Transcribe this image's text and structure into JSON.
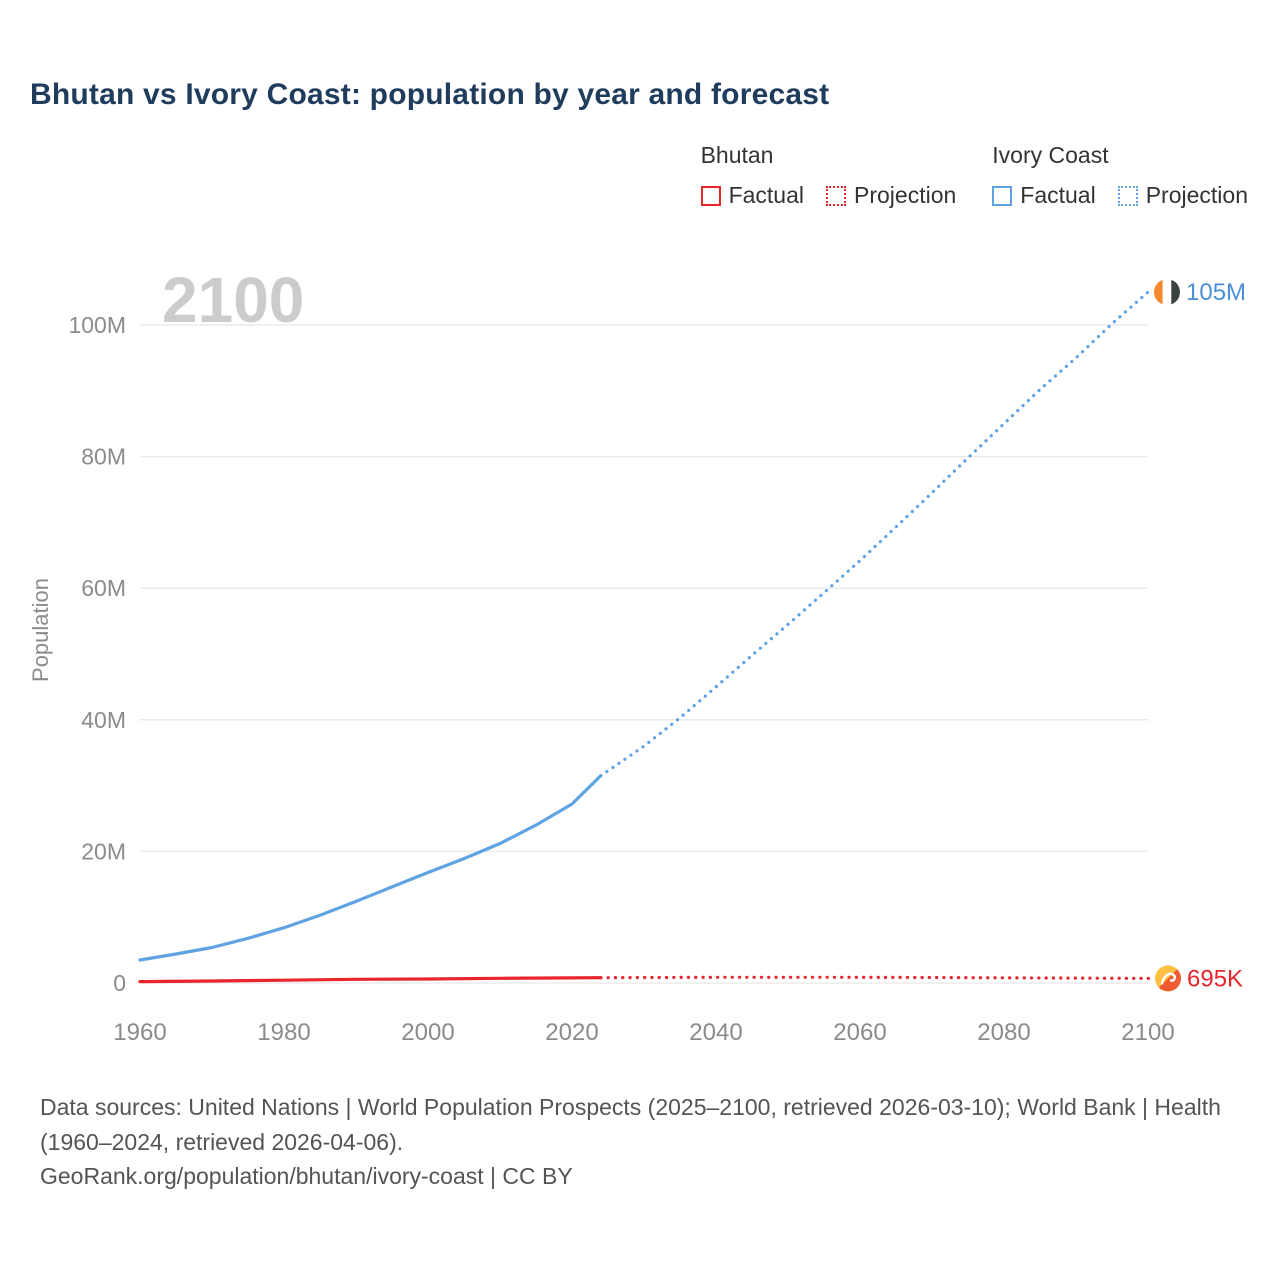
{
  "title": "Bhutan vs Ivory Coast: population by year and forecast",
  "watermark": "2100",
  "legend": {
    "groups": [
      {
        "name": "Bhutan",
        "color": "#e7252b",
        "items": [
          {
            "label": "Factual",
            "style": "solid"
          },
          {
            "label": "Projection",
            "style": "dotted"
          }
        ]
      },
      {
        "name": "Ivory Coast",
        "color": "#5fa3e3",
        "items": [
          {
            "label": "Factual",
            "style": "solid"
          },
          {
            "label": "Projection",
            "style": "dotted"
          }
        ]
      }
    ]
  },
  "icons": {
    "bhutan_flag": "bhutan-flag-icon (circle flag, yellow/orange diagonal with white dragon)",
    "ivory_coast_flag": "ivory-coast-flag-icon (circle flag, orange/white/dark vertical stripes)"
  },
  "footer": {
    "sources": "Data sources: United Nations | World Population Prospects (2025–2100, retrieved 2026-03-10); World Bank | Health (1960–2024, retrieved 2026-04-06).",
    "attribution": "GeoRank.org/population/bhutan/ivory-coast | CC BY"
  },
  "chart_data": {
    "type": "line",
    "title": "Bhutan vs Ivory Coast: population by year and forecast",
    "xlabel": "",
    "ylabel": "Population",
    "unit": "millions",
    "grid": "horizontal",
    "legend_position": "top-right",
    "factual_range": [
      1960,
      2024
    ],
    "projection_range": [
      2025,
      2100
    ],
    "xlim": [
      1957,
      2113
    ],
    "ylim": [
      0,
      107
    ],
    "xticks": [
      1960,
      1980,
      2000,
      2020,
      2040,
      2060,
      2080,
      2100
    ],
    "yticks": [
      {
        "value": 0,
        "label": "0"
      },
      {
        "value": 20,
        "label": "20M"
      },
      {
        "value": 40,
        "label": "40M"
      },
      {
        "value": 60,
        "label": "60M"
      },
      {
        "value": 80,
        "label": "80M"
      },
      {
        "value": 100,
        "label": "100M"
      }
    ],
    "series": [
      {
        "name": "Ivory Coast",
        "color": "#5fa3e3",
        "label_color": "#4a90d6",
        "end_label": "105M",
        "end_value": 105,
        "factual": {
          "x": [
            1960,
            1965,
            1970,
            1975,
            1980,
            1985,
            1990,
            1995,
            2000,
            2005,
            2010,
            2015,
            2020,
            2024
          ],
          "y": [
            3.5,
            4.4,
            5.4,
            6.8,
            8.4,
            10.3,
            12.4,
            14.6,
            16.8,
            18.9,
            21.2,
            24.0,
            27.2,
            31.5
          ]
        },
        "projection": {
          "x": [
            2024,
            2030,
            2035,
            2040,
            2045,
            2050,
            2055,
            2060,
            2065,
            2070,
            2075,
            2080,
            2085,
            2090,
            2095,
            2100
          ],
          "y": [
            31.5,
            36.0,
            40.3,
            45.0,
            49.8,
            54.5,
            59.3,
            64.2,
            69.3,
            74.5,
            79.8,
            85.0,
            90.2,
            95.0,
            100.2,
            105.0
          ]
        }
      },
      {
        "name": "Bhutan",
        "color": "#e7252b",
        "label_color": "#e7252b",
        "end_label": "695K",
        "end_value": 0.695,
        "factual": {
          "x": [
            1960,
            1970,
            1980,
            1990,
            2000,
            2010,
            2020,
            2024
          ],
          "y": [
            0.22,
            0.3,
            0.42,
            0.56,
            0.61,
            0.71,
            0.78,
            0.8
          ]
        },
        "projection": {
          "x": [
            2024,
            2030,
            2040,
            2050,
            2060,
            2070,
            2080,
            2090,
            2100
          ],
          "y": [
            0.8,
            0.83,
            0.86,
            0.87,
            0.86,
            0.83,
            0.79,
            0.74,
            0.695
          ]
        }
      }
    ]
  }
}
